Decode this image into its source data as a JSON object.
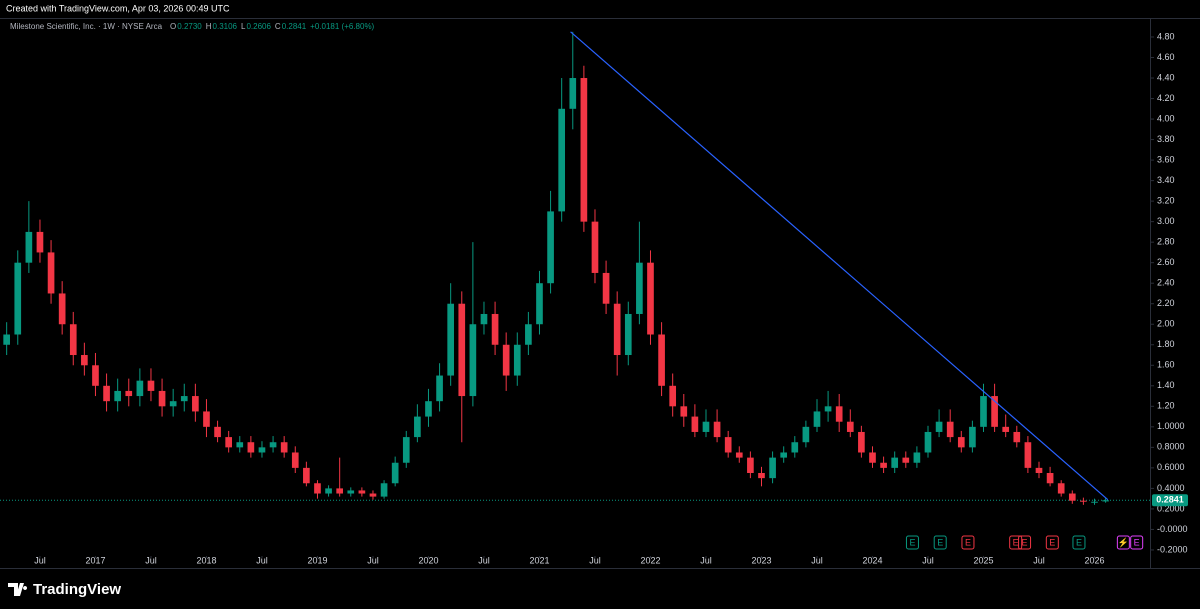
{
  "header": "Created with TradingView.com, Apr 03, 2026 00:49 UTC",
  "logo": "TradingView",
  "chart_data": {
    "type": "candlestick",
    "symbol_title": "Milestone Scientific, Inc. · 1W · NYSE Arca",
    "ohlc_legend": [
      {
        "key": "O",
        "value": "0.2730"
      },
      {
        "key": "H",
        "value": "0.3106"
      },
      {
        "key": "L",
        "value": "0.2606"
      },
      {
        "key": "C",
        "value": "0.2841"
      }
    ],
    "change": "+0.0181 (+6.80%)",
    "last_price": {
      "value": 0.2841,
      "label": "0.2841",
      "color": "#089981"
    },
    "up_color": "#089981",
    "down_color": "#f23645",
    "x": [
      2016.2,
      2016.3,
      2016.4,
      2016.5,
      2016.6,
      2016.7,
      2016.8,
      2016.9,
      2017.0,
      2017.1,
      2017.2,
      2017.3,
      2017.4,
      2017.5,
      2017.6,
      2017.7,
      2017.8,
      2017.9,
      2018.0,
      2018.1,
      2018.2,
      2018.3,
      2018.4,
      2018.5,
      2018.6,
      2018.7,
      2018.8,
      2018.9,
      2019.0,
      2019.1,
      2019.2,
      2019.3,
      2019.4,
      2019.5,
      2019.6,
      2019.7,
      2019.8,
      2019.9,
      2020.0,
      2020.1,
      2020.2,
      2020.3,
      2020.4,
      2020.5,
      2020.6,
      2020.7,
      2020.8,
      2020.9,
      2021.0,
      2021.1,
      2021.2,
      2021.3,
      2021.4,
      2021.5,
      2021.6,
      2021.7,
      2021.8,
      2021.9,
      2022.0,
      2022.1,
      2022.2,
      2022.3,
      2022.4,
      2022.5,
      2022.6,
      2022.7,
      2022.8,
      2022.9,
      2023.0,
      2023.1,
      2023.2,
      2023.3,
      2023.4,
      2023.5,
      2023.6,
      2023.7,
      2023.8,
      2023.9,
      2024.0,
      2024.1,
      2024.2,
      2024.3,
      2024.4,
      2024.5,
      2024.6,
      2024.7,
      2024.8,
      2024.9,
      2025.0,
      2025.1,
      2025.2,
      2025.3,
      2025.4,
      2025.5,
      2025.6,
      2025.7,
      2025.8,
      2025.9,
      2026.0,
      2026.1
    ],
    "open": [
      1.8,
      1.9,
      2.6,
      2.9,
      2.7,
      2.3,
      2.0,
      1.7,
      1.6,
      1.4,
      1.25,
      1.35,
      1.3,
      1.45,
      1.35,
      1.2,
      1.25,
      1.3,
      1.15,
      1.0,
      0.9,
      0.8,
      0.85,
      0.75,
      0.8,
      0.85,
      0.75,
      0.6,
      0.45,
      0.35,
      0.4,
      0.35,
      0.38,
      0.35,
      0.32,
      0.45,
      0.65,
      0.9,
      1.1,
      1.25,
      1.5,
      2.2,
      1.3,
      2.0,
      2.1,
      1.8,
      1.5,
      1.8,
      2.0,
      2.4,
      3.1,
      4.1,
      4.4,
      3.0,
      2.5,
      2.2,
      1.7,
      2.1,
      2.6,
      1.9,
      1.4,
      1.2,
      1.1,
      0.95,
      1.05,
      0.9,
      0.75,
      0.7,
      0.55,
      0.5,
      0.7,
      0.75,
      0.85,
      1.0,
      1.15,
      1.2,
      1.05,
      0.95,
      0.75,
      0.65,
      0.6,
      0.7,
      0.65,
      0.75,
      0.95,
      1.05,
      0.9,
      0.8,
      1.0,
      1.3,
      1.0,
      0.95,
      0.85,
      0.6,
      0.55,
      0.45,
      0.35,
      0.28,
      0.27,
      0.273
    ],
    "high": [
      2.02,
      2.72,
      3.2,
      3.02,
      2.82,
      2.42,
      2.12,
      1.82,
      1.72,
      1.52,
      1.47,
      1.47,
      1.57,
      1.57,
      1.47,
      1.37,
      1.42,
      1.42,
      1.27,
      1.06,
      0.96,
      0.91,
      0.91,
      0.86,
      0.91,
      0.91,
      0.81,
      0.66,
      0.48,
      0.43,
      0.7,
      0.41,
      0.41,
      0.38,
      0.48,
      0.71,
      0.96,
      1.22,
      1.37,
      1.62,
      2.4,
      2.32,
      2.8,
      2.22,
      2.22,
      1.92,
      1.92,
      2.12,
      2.52,
      3.3,
      4.4,
      4.85,
      4.52,
      3.12,
      2.62,
      2.32,
      2.22,
      3.0,
      2.72,
      2.02,
      1.52,
      1.32,
      1.22,
      1.17,
      1.17,
      0.96,
      0.81,
      0.76,
      0.61,
      0.76,
      0.81,
      0.91,
      1.06,
      1.27,
      1.35,
      1.32,
      1.17,
      1.01,
      0.81,
      0.71,
      0.76,
      0.76,
      0.81,
      1.01,
      1.17,
      1.17,
      0.96,
      1.06,
      1.42,
      1.42,
      1.12,
      1.01,
      0.91,
      0.66,
      0.61,
      0.48,
      0.38,
      0.31,
      0.3,
      0.3106
    ],
    "low": [
      1.7,
      1.8,
      2.5,
      2.6,
      2.2,
      1.9,
      1.6,
      1.5,
      1.3,
      1.15,
      1.15,
      1.2,
      1.2,
      1.25,
      1.1,
      1.1,
      1.15,
      1.05,
      0.9,
      0.85,
      0.75,
      0.75,
      0.7,
      0.7,
      0.75,
      0.7,
      0.55,
      0.42,
      0.3,
      0.32,
      0.32,
      0.32,
      0.32,
      0.29,
      0.3,
      0.42,
      0.6,
      0.85,
      1.0,
      1.15,
      1.4,
      0.85,
      1.2,
      1.9,
      1.7,
      1.35,
      1.4,
      1.7,
      1.9,
      2.3,
      3.0,
      3.9,
      2.9,
      2.4,
      2.1,
      1.5,
      1.6,
      2.0,
      1.8,
      1.3,
      1.1,
      1.0,
      0.9,
      0.9,
      0.85,
      0.7,
      0.65,
      0.5,
      0.42,
      0.45,
      0.65,
      0.7,
      0.8,
      0.95,
      1.05,
      0.95,
      0.9,
      0.7,
      0.6,
      0.55,
      0.55,
      0.6,
      0.6,
      0.7,
      0.9,
      0.85,
      0.75,
      0.75,
      0.95,
      0.95,
      0.9,
      0.8,
      0.55,
      0.5,
      0.42,
      0.32,
      0.25,
      0.24,
      0.24,
      0.2606
    ],
    "close": [
      1.9,
      2.6,
      2.9,
      2.7,
      2.3,
      2.0,
      1.7,
      1.6,
      1.4,
      1.25,
      1.35,
      1.3,
      1.45,
      1.35,
      1.2,
      1.25,
      1.3,
      1.15,
      1.0,
      0.9,
      0.8,
      0.85,
      0.75,
      0.8,
      0.85,
      0.75,
      0.6,
      0.45,
      0.35,
      0.4,
      0.35,
      0.38,
      0.35,
      0.32,
      0.45,
      0.65,
      0.9,
      1.1,
      1.25,
      1.5,
      2.2,
      1.3,
      2.0,
      2.1,
      1.8,
      1.5,
      1.8,
      2.0,
      2.4,
      3.1,
      4.1,
      4.4,
      3.0,
      2.5,
      2.2,
      1.7,
      2.1,
      2.6,
      1.9,
      1.4,
      1.2,
      1.1,
      0.95,
      1.05,
      0.9,
      0.75,
      0.7,
      0.55,
      0.5,
      0.7,
      0.75,
      0.85,
      1.0,
      1.15,
      1.2,
      1.05,
      0.95,
      0.75,
      0.65,
      0.6,
      0.7,
      0.65,
      0.75,
      0.95,
      1.05,
      0.9,
      0.8,
      1.0,
      1.3,
      1.0,
      0.95,
      0.85,
      0.6,
      0.55,
      0.45,
      0.35,
      0.28,
      0.27,
      0.27,
      0.2841
    ],
    "trendline": {
      "x": [
        2021.28,
        2026.12
      ],
      "y": [
        4.85,
        0.29
      ],
      "color": "#2962ff"
    },
    "events": [
      {
        "x": 2024.36,
        "label": "E",
        "color": "#089981"
      },
      {
        "x": 2024.61,
        "label": "E",
        "color": "#089981"
      },
      {
        "x": 2024.86,
        "label": "E",
        "color": "#f23645"
      },
      {
        "x": 2025.29,
        "label": "E",
        "color": "#f23645"
      },
      {
        "x": 2025.37,
        "label": "E",
        "color": "#f23645"
      },
      {
        "x": 2025.62,
        "label": "E",
        "color": "#f23645"
      },
      {
        "x": 2025.86,
        "label": "E",
        "color": "#089981"
      },
      {
        "x": 2026.26,
        "label": "⚡",
        "color": "#e040fb"
      },
      {
        "x": 2026.38,
        "label": "E",
        "color": "#e040fb"
      }
    ],
    "xlim": [
      2016.14,
      2026.5
    ],
    "xticks": [
      {
        "value": 2016.5,
        "label": "Jul"
      },
      {
        "value": 2017,
        "label": "2017"
      },
      {
        "value": 2017.5,
        "label": "Jul"
      },
      {
        "value": 2018,
        "label": "2018"
      },
      {
        "value": 2018.5,
        "label": "Jul"
      },
      {
        "value": 2019,
        "label": "2019"
      },
      {
        "value": 2019.5,
        "label": "Jul"
      },
      {
        "value": 2020,
        "label": "2020"
      },
      {
        "value": 2020.5,
        "label": "Jul"
      },
      {
        "value": 2021,
        "label": "2021"
      },
      {
        "value": 2021.5,
        "label": "Jul"
      },
      {
        "value": 2022,
        "label": "2022"
      },
      {
        "value": 2022.5,
        "label": "Jul"
      },
      {
        "value": 2023,
        "label": "2023"
      },
      {
        "value": 2023.5,
        "label": "Jul"
      },
      {
        "value": 2024,
        "label": "2024"
      },
      {
        "value": 2024.5,
        "label": "Jul"
      },
      {
        "value": 2025,
        "label": "2025"
      },
      {
        "value": 2025.5,
        "label": "Jul"
      },
      {
        "value": 2026,
        "label": "2026"
      }
    ],
    "ylim": [
      -0.22,
      4.985
    ],
    "yticks": [
      {
        "value": 4.8,
        "label": "4.80"
      },
      {
        "value": 4.6,
        "label": "4.60"
      },
      {
        "value": 4.4,
        "label": "4.40"
      },
      {
        "value": 4.2,
        "label": "4.20"
      },
      {
        "value": 4.0,
        "label": "4.00"
      },
      {
        "value": 3.8,
        "label": "3.80"
      },
      {
        "value": 3.6,
        "label": "3.60"
      },
      {
        "value": 3.4,
        "label": "3.40"
      },
      {
        "value": 3.2,
        "label": "3.20"
      },
      {
        "value": 3.0,
        "label": "3.00"
      },
      {
        "value": 2.8,
        "label": "2.80"
      },
      {
        "value": 2.6,
        "label": "2.60"
      },
      {
        "value": 2.4,
        "label": "2.40"
      },
      {
        "value": 2.2,
        "label": "2.20"
      },
      {
        "value": 2.0,
        "label": "2.00"
      },
      {
        "value": 1.8,
        "label": "1.80"
      },
      {
        "value": 1.6,
        "label": "1.60"
      },
      {
        "value": 1.4,
        "label": "1.40"
      },
      {
        "value": 1.2,
        "label": "1.20"
      },
      {
        "value": 1.0,
        "label": "1.0000"
      },
      {
        "value": 0.8,
        "label": "0.8000"
      },
      {
        "value": 0.6,
        "label": "0.6000"
      },
      {
        "value": 0.4,
        "label": "0.4000"
      },
      {
        "value": 0.2,
        "label": "0.2000"
      },
      {
        "value": 0,
        "label": "-0.0000"
      },
      {
        "value": -0.2,
        "label": "-0.2000"
      }
    ]
  }
}
